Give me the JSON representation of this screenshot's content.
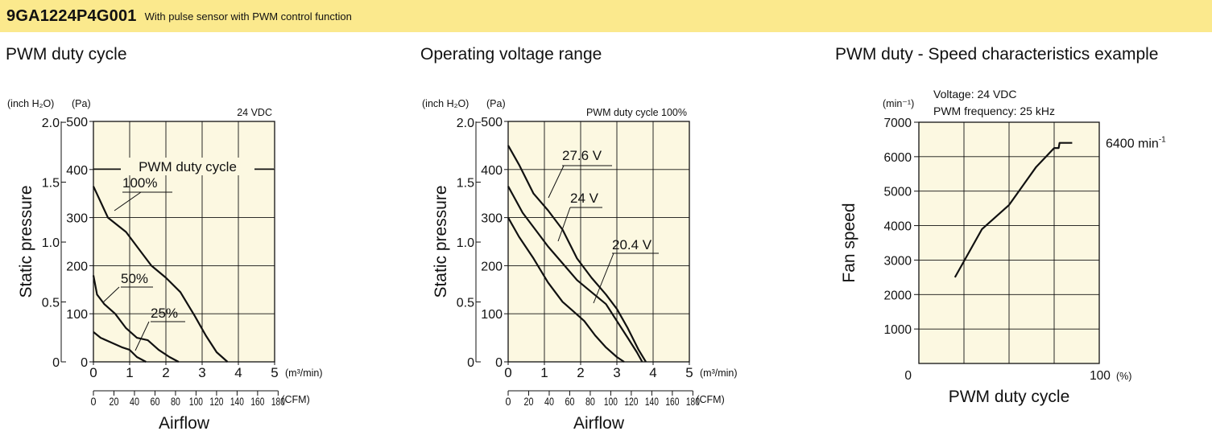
{
  "header": {
    "model": "9GA1224P4G001",
    "description": "With pulse sensor with PWM control function"
  },
  "colors": {
    "header_bg": "#fbe98d",
    "plot_bg": "#fcf8e1",
    "line": "#111111"
  },
  "chart_data": [
    {
      "type": "line",
      "title": "PWM duty cycle",
      "condition": "24 VDC",
      "xlabel": "Airflow",
      "ylabel": "Static pressure",
      "x_unit": "(m³/min)",
      "x2_unit": "(CFM)",
      "y_unit_pa": "(Pa)",
      "y_unit_inch": "(inch H₂O)",
      "xlim": [
        0,
        5
      ],
      "ylim": [
        0,
        500
      ],
      "grid": true,
      "x_ticks": [
        "0",
        "1",
        "2",
        "3",
        "4",
        "5"
      ],
      "x2_ticks": [
        "0",
        "20",
        "40",
        "60",
        "80",
        "100",
        "120",
        "140",
        "160",
        "180"
      ],
      "y_ticks": [
        "0",
        "100",
        "200",
        "300",
        "400",
        "500"
      ],
      "y2_ticks": [
        "0",
        "0.5",
        "1.0",
        "1.5",
        "2.0"
      ],
      "legend_title": "PWM duty cycle",
      "series": [
        {
          "name": "100%",
          "x": [
            0,
            0.4,
            0.9,
            1.3,
            1.6,
            2.0,
            2.4,
            2.8,
            3.1,
            3.4,
            3.7
          ],
          "y": [
            365,
            300,
            270,
            230,
            200,
            175,
            145,
            95,
            55,
            20,
            0
          ]
        },
        {
          "name": "50%",
          "x": [
            0,
            0.1,
            0.3,
            0.6,
            0.9,
            1.2,
            1.5,
            1.8,
            2.1,
            2.35
          ],
          "y": [
            180,
            140,
            120,
            100,
            70,
            50,
            45,
            25,
            10,
            0
          ]
        },
        {
          "name": "25%",
          "x": [
            0,
            0.2,
            0.5,
            0.8,
            1.0,
            1.2,
            1.45
          ],
          "y": [
            62,
            50,
            40,
            30,
            25,
            10,
            0
          ]
        }
      ]
    },
    {
      "type": "line",
      "title": "Operating voltage range",
      "condition": "PWM duty cycle 100%",
      "xlabel": "Airflow",
      "ylabel": "Static pressure",
      "x_unit": "(m³/min)",
      "x2_unit": "(CFM)",
      "y_unit_pa": "(Pa)",
      "y_unit_inch": "(inch H₂O)",
      "xlim": [
        0,
        5
      ],
      "ylim": [
        0,
        500
      ],
      "grid": true,
      "x_ticks": [
        "0",
        "1",
        "2",
        "3",
        "4",
        "5"
      ],
      "x2_ticks": [
        "0",
        "20",
        "40",
        "60",
        "80",
        "100",
        "120",
        "140",
        "160",
        "180"
      ],
      "y_ticks": [
        "0",
        "100",
        "200",
        "300",
        "400",
        "500"
      ],
      "y2_ticks": [
        "0",
        "0.5",
        "1.0",
        "1.5",
        "2.0"
      ],
      "series": [
        {
          "name": "27.6 V",
          "x": [
            0,
            0.3,
            0.7,
            1.1,
            1.5,
            1.9,
            2.3,
            2.7,
            3.0,
            3.3,
            3.6,
            3.8
          ],
          "y": [
            450,
            410,
            350,
            315,
            275,
            215,
            175,
            140,
            110,
            70,
            25,
            0
          ]
        },
        {
          "name": "24 V",
          "x": [
            0,
            0.4,
            0.8,
            1.1,
            1.5,
            1.9,
            2.3,
            2.7,
            3.0,
            3.3,
            3.55,
            3.7
          ],
          "y": [
            365,
            310,
            270,
            240,
            205,
            170,
            145,
            120,
            85,
            50,
            20,
            0
          ]
        },
        {
          "name": "20.4 V",
          "x": [
            0,
            0.3,
            0.7,
            1.1,
            1.5,
            1.8,
            2.1,
            2.4,
            2.7,
            3.0,
            3.2
          ],
          "y": [
            300,
            260,
            215,
            165,
            125,
            105,
            85,
            55,
            30,
            10,
            0
          ]
        }
      ]
    },
    {
      "type": "line",
      "title": "PWM duty - Speed characteristics example",
      "condition_lines": [
        "Voltage: 24 VDC",
        "PWM frequency: 25 kHz"
      ],
      "xlabel": "PWM duty cycle",
      "ylabel": "Fan speed",
      "x_unit": "(%)",
      "y_unit": "(min⁻¹)",
      "xlim": [
        0,
        100
      ],
      "ylim": [
        0,
        7000
      ],
      "grid": true,
      "x_ticks": [
        "0",
        "100"
      ],
      "y_ticks": [
        "1000",
        "2000",
        "3000",
        "4000",
        "5000",
        "6000",
        "7000"
      ],
      "annotation": {
        "base": "6400 min",
        "sup": "-1"
      },
      "series": [
        {
          "x": [
            20,
            35,
            50,
            65,
            75,
            77.5,
            78,
            78.5,
            85
          ],
          "y": [
            2500,
            3900,
            4600,
            5700,
            6250,
            6250,
            6400,
            6400,
            6400
          ]
        }
      ]
    }
  ]
}
